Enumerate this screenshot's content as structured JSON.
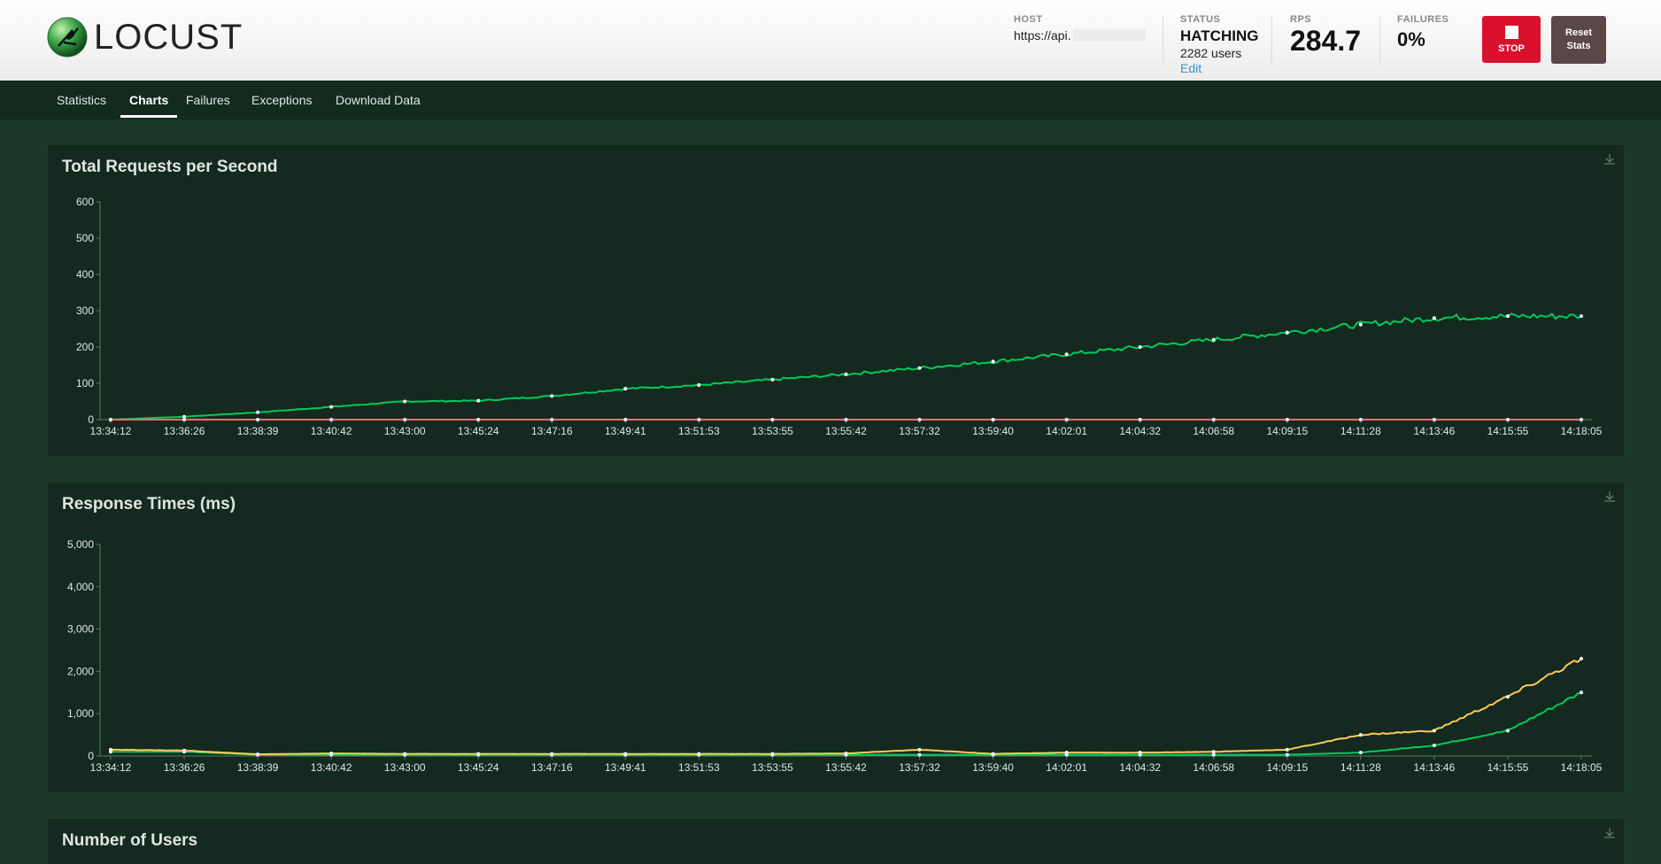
{
  "app": {
    "name": "LOCUST"
  },
  "header": {
    "host_label": "HOST",
    "host_value": "https://api.",
    "status_label": "STATUS",
    "status_value": "HATCHING",
    "users_text": "2282 users",
    "edit_link": "Edit",
    "rps_label": "RPS",
    "rps_value": "284.7",
    "failures_label": "FAILURES",
    "failures_value": "0%",
    "stop_label": "STOP",
    "reset_label_line1": "Reset",
    "reset_label_line2": "Stats"
  },
  "nav": {
    "tabs": [
      {
        "label": "Statistics"
      },
      {
        "label": "Charts",
        "active": true
      },
      {
        "label": "Failures"
      },
      {
        "label": "Exceptions"
      },
      {
        "label": "Download Data"
      }
    ]
  },
  "colors": {
    "rps_line": "#00ca5a",
    "failures_line": "#ff6d6d",
    "median_line": "#00ca5a",
    "p95_line": "#ffca5a",
    "panel_bg": "#14291f",
    "page_bg": "#1c3829",
    "stop_button": "#d9112d"
  },
  "panels": [
    {
      "title": "Total Requests per Second"
    },
    {
      "title": "Response Times (ms)"
    },
    {
      "title": "Number of Users"
    }
  ],
  "chart_data": [
    {
      "type": "line",
      "title": "Total Requests per Second",
      "x_ticks": [
        "13:34:12",
        "13:36:26",
        "13:38:39",
        "13:40:42",
        "13:43:00",
        "13:45:24",
        "13:47:16",
        "13:49:41",
        "13:51:53",
        "13:53:55",
        "13:55:42",
        "13:57:32",
        "13:59:40",
        "14:02:01",
        "14:04:32",
        "14:06:58",
        "14:09:15",
        "14:11:28",
        "14:13:46",
        "14:15:55",
        "14:18:05"
      ],
      "y_ticks": [
        "0",
        "100",
        "200",
        "300",
        "400",
        "500",
        "600"
      ],
      "ylim": [
        0,
        600
      ],
      "series": [
        {
          "values": [
            0,
            8,
            20,
            35,
            50,
            52,
            65,
            85,
            95,
            110,
            125,
            142,
            160,
            180,
            200,
            220,
            240,
            262,
            280,
            285,
            285
          ]
        },
        {
          "values": [
            0,
            0,
            0,
            0,
            0,
            0,
            0,
            0,
            0,
            0,
            0,
            0,
            0,
            0,
            0,
            0,
            0,
            0,
            0,
            0,
            0
          ]
        }
      ]
    },
    {
      "type": "line",
      "title": "Response Times (ms)",
      "x_ticks": [
        "13:34:12",
        "13:36:26",
        "13:38:39",
        "13:40:42",
        "13:43:00",
        "13:45:24",
        "13:47:16",
        "13:49:41",
        "13:51:53",
        "13:53:55",
        "13:55:42",
        "13:57:32",
        "13:59:40",
        "14:02:01",
        "14:04:32",
        "14:06:58",
        "14:09:15",
        "14:11:28",
        "14:13:46",
        "14:15:55",
        "14:18:05"
      ],
      "y_ticks": [
        "0",
        "1,000",
        "2,000",
        "3,000",
        "4,000",
        "5,000"
      ],
      "ylim": [
        0,
        5000
      ],
      "series": [
        {
          "values": [
            100,
            100,
            30,
            30,
            30,
            30,
            30,
            30,
            30,
            30,
            30,
            30,
            30,
            30,
            30,
            30,
            30,
            80,
            250,
            600,
            1500
          ]
        },
        {
          "values": [
            150,
            130,
            40,
            60,
            50,
            50,
            50,
            50,
            50,
            50,
            60,
            150,
            50,
            80,
            80,
            100,
            150,
            500,
            600,
            1400,
            2300
          ]
        }
      ]
    }
  ]
}
